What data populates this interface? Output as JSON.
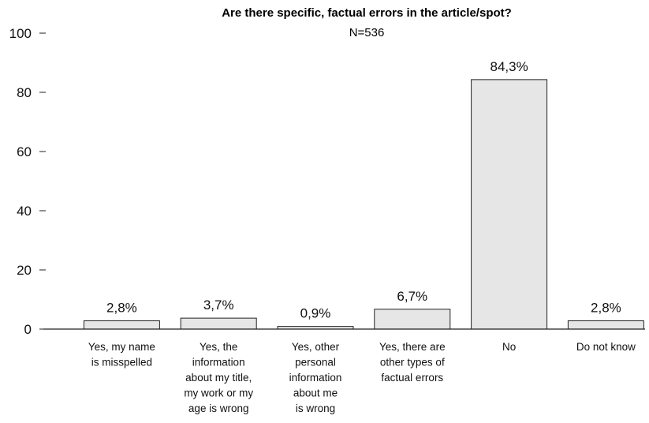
{
  "chart_data": {
    "type": "bar",
    "title": "Are there specific, factual errors in the article/spot?",
    "subtitle": "N=536",
    "xlabel": "",
    "ylabel": "",
    "ylim": [
      0,
      100
    ],
    "yticks": [
      0,
      20,
      40,
      60,
      80,
      100
    ],
    "grid": false,
    "categories": [
      [
        "Yes, my name",
        "is misspelled"
      ],
      [
        "Yes, the",
        "information",
        "about my title,",
        "my work or my",
        "age is wrong"
      ],
      [
        "Yes, other",
        "personal",
        "information",
        "about me",
        "is wrong"
      ],
      [
        "Yes, there are",
        "other types of",
        "factual errors"
      ],
      [
        "No"
      ],
      [
        "Do not know"
      ]
    ],
    "values": [
      2.8,
      3.7,
      0.9,
      6.7,
      84.3,
      2.8
    ],
    "data_labels": [
      "2,8%",
      "3,7%",
      "0,9%",
      "6,7%",
      "84,3%",
      "2,8%"
    ],
    "colors": {
      "bar_fill": "#e6e6e6",
      "bar_stroke": "#222222",
      "axis": "#222222",
      "text": "#111111"
    }
  }
}
